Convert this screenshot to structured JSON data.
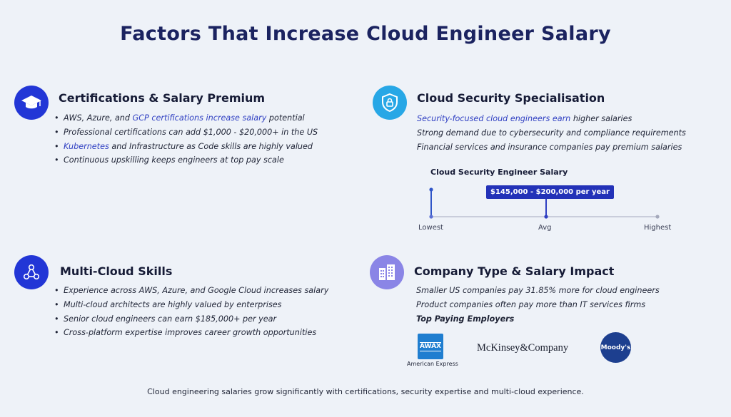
{
  "title": "Factors That Increase Cloud Engineer Salary",
  "certifications": {
    "title": "Certifications & Salary Premium",
    "icon": "graduation-cap-icon",
    "bullets": [
      {
        "pre": "AWS, Azure, and ",
        "hl": "GCP certifications increase salary",
        "post": " potential"
      },
      {
        "pre": "Professional certifications can add $1,000 - $20,000+ in the US",
        "hl": "",
        "post": ""
      },
      {
        "pre": "",
        "hl": "Kubernetes",
        "post": " and Infrastructure as Code skills are highly valued"
      },
      {
        "pre": "Continuous upskilling keeps engineers at top pay scale",
        "hl": "",
        "post": ""
      }
    ]
  },
  "security": {
    "title": "Cloud Security Specialisation",
    "icon": "shield-lock-icon",
    "lines": [
      {
        "hl": "Security-focused cloud engineers earn",
        "post": " higher salaries"
      },
      {
        "hl": "",
        "post": "Strong demand due to cybersecurity and compliance requirements"
      },
      {
        "hl": "",
        "post": "Financial services and insurance companies pay premium salaries"
      }
    ],
    "chart_title": "Cloud Security Engineer Salary",
    "range_label": "$145,000 - $200,000 per year",
    "ticks": [
      "Lowest",
      "Avg",
      "Highest"
    ]
  },
  "multicloud": {
    "title": "Multi-Cloud Skills",
    "icon": "network-nodes-icon",
    "bullets": [
      "Experience across AWS, Azure, and Google Cloud increases salary",
      "Multi-cloud architects are highly valued by enterprises",
      "Senior cloud engineers can earn $185,000+ per year",
      "Cross-platform expertise improves career growth opportunities"
    ]
  },
  "company": {
    "title": "Company Type & Salary Impact",
    "icon": "buildings-icon",
    "lines": [
      "Smaller US companies pay 31.85% more for cloud engineers",
      "Product companies often pay more than IT services firms"
    ],
    "employers_title": "Top Paying Employers",
    "employers": {
      "amex_logo": "AWAX",
      "amex_name": "American Express",
      "mckinsey": "McKinsey&Company",
      "moodys": "Moody's"
    }
  },
  "footer": "Cloud engineering salaries grow significantly with certifications, security expertise and multi-cloud experience.",
  "colors": {
    "title": "#1b2360",
    "accent": "#2f3fc2",
    "icon_blue": "#2236d6",
    "icon_cyan": "#27a7e6",
    "icon_violet": "#8a85e6",
    "range": "#2332b8"
  }
}
